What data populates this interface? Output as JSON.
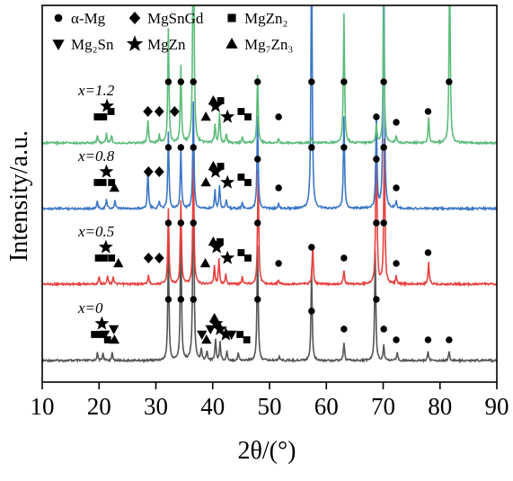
{
  "chart_data": {
    "type": "line",
    "xlabel": "2θ/(°)",
    "ylabel": "Intensity/a.u.",
    "xlim": [
      10,
      90
    ],
    "xticks": [
      "10",
      "20",
      "30",
      "40",
      "50",
      "60",
      "70",
      "80",
      "90"
    ],
    "yticks_shown": false,
    "legend": {
      "placement": "top",
      "entries": [
        {
          "symbol": "circle",
          "label": "α-Mg"
        },
        {
          "symbol": "diamond",
          "label": "MgSnGd"
        },
        {
          "symbol": "square",
          "label": "MgZn₂"
        },
        {
          "symbol": "triangle-down",
          "label": "Mg₂Sn"
        },
        {
          "symbol": "star",
          "label": "MgZn"
        },
        {
          "symbol": "triangle-up",
          "label": "Mg₇Zn₃"
        }
      ]
    },
    "series": [
      {
        "name": "x=0",
        "color": "#555555",
        "peaks": [
          {
            "x": 19.7,
            "h": 0.05
          },
          {
            "x": 20.7,
            "h": 0.05
          },
          {
            "x": 22.3,
            "h": 0.05
          },
          {
            "x": 32.2,
            "h": 0.75
          },
          {
            "x": 34.4,
            "h": 0.9
          },
          {
            "x": 36.6,
            "h": 1.4
          },
          {
            "x": 38.0,
            "h": 0.07
          },
          {
            "x": 39.0,
            "h": 0.06
          },
          {
            "x": 40.5,
            "h": 0.14
          },
          {
            "x": 41.3,
            "h": 0.12
          },
          {
            "x": 42.5,
            "h": 0.06
          },
          {
            "x": 44.5,
            "h": 0.05
          },
          {
            "x": 47.9,
            "h": 0.75
          },
          {
            "x": 51.7,
            "h": 0.03
          },
          {
            "x": 57.4,
            "h": 0.6
          },
          {
            "x": 63.1,
            "h": 0.12
          },
          {
            "x": 68.6,
            "h": 0.72
          },
          {
            "x": 70.1,
            "h": 0.1
          },
          {
            "x": 72.5,
            "h": 0.05
          },
          {
            "x": 77.9,
            "h": 0.06
          },
          {
            "x": 81.6,
            "h": 0.06
          }
        ]
      },
      {
        "name": "x=0.5",
        "color": "#e8403e",
        "peaks": [
          {
            "x": 20.0,
            "h": 0.05
          },
          {
            "x": 21.5,
            "h": 0.06
          },
          {
            "x": 22.5,
            "h": 0.05
          },
          {
            "x": 28.7,
            "h": 0.06
          },
          {
            "x": 32.2,
            "h": 0.5
          },
          {
            "x": 34.4,
            "h": 0.55
          },
          {
            "x": 36.6,
            "h": 0.85
          },
          {
            "x": 40.3,
            "h": 0.12
          },
          {
            "x": 41.1,
            "h": 0.16
          },
          {
            "x": 42.3,
            "h": 0.06
          },
          {
            "x": 45.2,
            "h": 0.05
          },
          {
            "x": 48.0,
            "h": 0.75
          },
          {
            "x": 51.6,
            "h": 0.03
          },
          {
            "x": 57.6,
            "h": 0.25
          },
          {
            "x": 63.1,
            "h": 0.09
          },
          {
            "x": 68.8,
            "h": 1.1
          },
          {
            "x": 70.2,
            "h": 0.95
          },
          {
            "x": 72.3,
            "h": 0.05
          },
          {
            "x": 78.0,
            "h": 0.15
          }
        ]
      },
      {
        "name": "x=0.8",
        "color": "#3b77c8",
        "peaks": [
          {
            "x": 19.7,
            "h": 0.05
          },
          {
            "x": 21.3,
            "h": 0.06
          },
          {
            "x": 22.8,
            "h": 0.05
          },
          {
            "x": 28.6,
            "h": 0.25
          },
          {
            "x": 30.6,
            "h": 0.05
          },
          {
            "x": 32.2,
            "h": 0.5
          },
          {
            "x": 34.4,
            "h": 0.4
          },
          {
            "x": 36.6,
            "h": 0.7
          },
          {
            "x": 40.4,
            "h": 0.12
          },
          {
            "x": 41.2,
            "h": 0.15
          },
          {
            "x": 42.4,
            "h": 0.06
          },
          {
            "x": 45.2,
            "h": 0.04
          },
          {
            "x": 47.9,
            "h": 0.6
          },
          {
            "x": 51.6,
            "h": 0.03
          },
          {
            "x": 57.4,
            "h": 1.8
          },
          {
            "x": 63.1,
            "h": 0.6
          },
          {
            "x": 68.8,
            "h": 0.6
          },
          {
            "x": 70.1,
            "h": 1.8
          },
          {
            "x": 72.3,
            "h": 0.05
          }
        ]
      },
      {
        "name": "x=1.2",
        "color": "#5cbc7a",
        "peaks": [
          {
            "x": 19.7,
            "h": 0.05
          },
          {
            "x": 21.3,
            "h": 0.06
          },
          {
            "x": 22.2,
            "h": 0.05
          },
          {
            "x": 28.6,
            "h": 0.15
          },
          {
            "x": 30.6,
            "h": 0.05
          },
          {
            "x": 32.2,
            "h": 0.75
          },
          {
            "x": 34.4,
            "h": 0.5
          },
          {
            "x": 36.6,
            "h": 1.8
          },
          {
            "x": 40.4,
            "h": 0.12
          },
          {
            "x": 41.2,
            "h": 0.2
          },
          {
            "x": 42.4,
            "h": 0.06
          },
          {
            "x": 45.2,
            "h": 0.04
          },
          {
            "x": 47.9,
            "h": 0.45
          },
          {
            "x": 51.6,
            "h": 0.03
          },
          {
            "x": 57.4,
            "h": 0.03
          },
          {
            "x": 63.1,
            "h": 0.85
          },
          {
            "x": 68.8,
            "h": 0.12
          },
          {
            "x": 70.1,
            "h": 0.9
          },
          {
            "x": 72.3,
            "h": 0.05
          },
          {
            "x": 78.0,
            "h": 0.16
          },
          {
            "x": 81.7,
            "h": 1.2
          }
        ]
      }
    ],
    "phase_markers": [
      {
        "series": "x=0",
        "markers": [
          {
            "x": 19.2,
            "symbol": "square",
            "level": 1
          },
          {
            "x": 20.2,
            "symbol": "square",
            "level": 1
          },
          {
            "x": 21.0,
            "symbol": "triangle-down",
            "level": 1
          },
          {
            "x": 22.6,
            "symbol": "triangle-down",
            "level": 2
          },
          {
            "x": 20.5,
            "symbol": "star",
            "level": 3
          },
          {
            "x": 21.5,
            "symbol": "square",
            "level": 0
          },
          {
            "x": 22.7,
            "symbol": "triangle-up",
            "level": 0
          },
          {
            "x": 32.2,
            "symbol": "circle",
            "level": 6
          },
          {
            "x": 34.4,
            "symbol": "circle",
            "level": 6
          },
          {
            "x": 36.6,
            "symbol": "circle",
            "level": 6
          },
          {
            "x": 38.1,
            "symbol": "triangle-down",
            "level": 1
          },
          {
            "x": 38.9,
            "symbol": "triangle-up",
            "level": 0
          },
          {
            "x": 39.6,
            "symbol": "triangle-down",
            "level": 2
          },
          {
            "x": 40.3,
            "symbol": "triangle-up",
            "level": 4
          },
          {
            "x": 40.6,
            "symbol": "star",
            "level": 3
          },
          {
            "x": 41.3,
            "symbol": "star",
            "level": 2
          },
          {
            "x": 42.3,
            "symbol": "star",
            "level": 1
          },
          {
            "x": 43.3,
            "symbol": "triangle-down",
            "level": 1
          },
          {
            "x": 44.8,
            "symbol": "square",
            "level": 1
          },
          {
            "x": 46.0,
            "symbol": "square",
            "level": 0
          },
          {
            "x": 47.9,
            "symbol": "circle",
            "level": 6
          },
          {
            "x": 57.4,
            "symbol": "circle",
            "level": 5
          },
          {
            "x": 63.1,
            "symbol": "circle",
            "level": 2
          },
          {
            "x": 68.8,
            "symbol": "circle",
            "level": 6
          },
          {
            "x": 70.1,
            "symbol": "circle",
            "level": 2
          },
          {
            "x": 72.3,
            "symbol": "circle",
            "level": 0
          },
          {
            "x": 77.9,
            "symbol": "circle",
            "level": 0
          },
          {
            "x": 81.6,
            "symbol": "circle",
            "level": 0
          }
        ]
      },
      {
        "series": "x=0.5",
        "markers": [
          {
            "x": 19.9,
            "symbol": "square",
            "level": 1
          },
          {
            "x": 20.9,
            "symbol": "square",
            "level": 1
          },
          {
            "x": 21.2,
            "symbol": "star",
            "level": 3
          },
          {
            "x": 22.2,
            "symbol": "square",
            "level": 1
          },
          {
            "x": 23.4,
            "symbol": "triangle-up",
            "level": 0
          },
          {
            "x": 28.7,
            "symbol": "diamond",
            "level": 1
          },
          {
            "x": 30.6,
            "symbol": "diamond",
            "level": 1
          },
          {
            "x": 32.2,
            "symbol": "circle",
            "level": 6
          },
          {
            "x": 34.4,
            "symbol": "circle",
            "level": 6
          },
          {
            "x": 36.6,
            "symbol": "circle",
            "level": 6
          },
          {
            "x": 38.7,
            "symbol": "triangle-up",
            "level": 0
          },
          {
            "x": 40.1,
            "symbol": "triangle-up",
            "level": 4
          },
          {
            "x": 40.7,
            "symbol": "star",
            "level": 3
          },
          {
            "x": 41.3,
            "symbol": "square",
            "level": 4
          },
          {
            "x": 42.6,
            "symbol": "star",
            "level": 1
          },
          {
            "x": 45.0,
            "symbol": "square",
            "level": 2
          },
          {
            "x": 46.2,
            "symbol": "square",
            "level": 1
          },
          {
            "x": 47.9,
            "symbol": "circle",
            "level": 6
          },
          {
            "x": 51.6,
            "symbol": "circle",
            "level": 0
          },
          {
            "x": 57.4,
            "symbol": "circle",
            "level": 3
          },
          {
            "x": 63.1,
            "symbol": "circle",
            "level": 1
          },
          {
            "x": 68.8,
            "symbol": "circle",
            "level": 6
          },
          {
            "x": 70.1,
            "symbol": "circle",
            "level": 6
          },
          {
            "x": 72.3,
            "symbol": "circle",
            "level": 0
          },
          {
            "x": 77.9,
            "symbol": "circle",
            "level": 2
          }
        ]
      },
      {
        "series": "x=0.8",
        "markers": [
          {
            "x": 19.7,
            "symbol": "square",
            "level": 1
          },
          {
            "x": 20.7,
            "symbol": "square",
            "level": 1
          },
          {
            "x": 21.3,
            "symbol": "star",
            "level": 3
          },
          {
            "x": 22.2,
            "symbol": "square",
            "level": 1
          },
          {
            "x": 22.7,
            "symbol": "triangle-up",
            "level": 0
          },
          {
            "x": 28.7,
            "symbol": "diamond",
            "level": 3
          },
          {
            "x": 30.6,
            "symbol": "diamond",
            "level": 3
          },
          {
            "x": 32.2,
            "symbol": "circle",
            "level": 6
          },
          {
            "x": 34.4,
            "symbol": "circle",
            "level": 6
          },
          {
            "x": 36.6,
            "symbol": "circle",
            "level": 6
          },
          {
            "x": 38.8,
            "symbol": "triangle-up",
            "level": 1
          },
          {
            "x": 40.1,
            "symbol": "triangle-up",
            "level": 4
          },
          {
            "x": 40.5,
            "symbol": "star",
            "level": 3
          },
          {
            "x": 41.4,
            "symbol": "square",
            "level": 4
          },
          {
            "x": 42.6,
            "symbol": "star",
            "level": 1
          },
          {
            "x": 45.0,
            "symbol": "square",
            "level": 2
          },
          {
            "x": 46.2,
            "symbol": "square",
            "level": 1
          },
          {
            "x": 47.9,
            "symbol": "circle",
            "level": 5
          },
          {
            "x": 51.6,
            "symbol": "circle",
            "level": 0
          },
          {
            "x": 57.4,
            "symbol": "circle",
            "level": 6
          },
          {
            "x": 63.1,
            "symbol": "circle",
            "level": 6
          },
          {
            "x": 68.8,
            "symbol": "circle",
            "level": 5
          },
          {
            "x": 70.1,
            "symbol": "circle",
            "level": 6
          },
          {
            "x": 72.3,
            "symbol": "circle",
            "level": 0
          }
        ]
      },
      {
        "series": "x=1.2",
        "markers": [
          {
            "x": 19.7,
            "symbol": "square",
            "level": 1
          },
          {
            "x": 20.8,
            "symbol": "square",
            "level": 1
          },
          {
            "x": 21.4,
            "symbol": "star",
            "level": 3
          },
          {
            "x": 22.1,
            "symbol": "square",
            "level": 2
          },
          {
            "x": 28.6,
            "symbol": "diamond",
            "level": 2
          },
          {
            "x": 30.6,
            "symbol": "diamond",
            "level": 2
          },
          {
            "x": 32.2,
            "symbol": "circle",
            "level": 6
          },
          {
            "x": 34.4,
            "symbol": "circle",
            "level": 6
          },
          {
            "x": 36.6,
            "symbol": "circle",
            "level": 6
          },
          {
            "x": 33.3,
            "symbol": "diamond",
            "level": 2
          },
          {
            "x": 38.8,
            "symbol": "triangle-up",
            "level": 1
          },
          {
            "x": 40.1,
            "symbol": "triangle-up",
            "level": 4
          },
          {
            "x": 40.5,
            "symbol": "star",
            "level": 3
          },
          {
            "x": 41.4,
            "symbol": "square",
            "level": 4
          },
          {
            "x": 42.6,
            "symbol": "star",
            "level": 1
          },
          {
            "x": 45.0,
            "symbol": "square",
            "level": 2
          },
          {
            "x": 46.2,
            "symbol": "square",
            "level": 1
          },
          {
            "x": 47.9,
            "symbol": "circle",
            "level": 6
          },
          {
            "x": 51.6,
            "symbol": "circle",
            "level": 1
          },
          {
            "x": 57.4,
            "symbol": "circle",
            "level": 6
          },
          {
            "x": 63.1,
            "symbol": "circle",
            "level": 6
          },
          {
            "x": 68.8,
            "symbol": "circle",
            "level": 1
          },
          {
            "x": 70.1,
            "symbol": "circle",
            "level": 6
          },
          {
            "x": 72.3,
            "symbol": "circle",
            "level": 0
          },
          {
            "x": 77.9,
            "symbol": "circle",
            "level": 2
          },
          {
            "x": 81.6,
            "symbol": "circle",
            "level": 6
          }
        ]
      }
    ]
  }
}
